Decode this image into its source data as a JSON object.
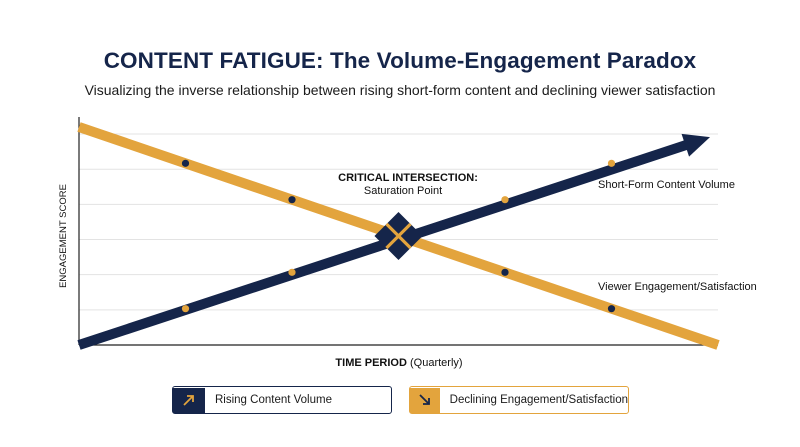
{
  "title": "CONTENT FATIGUE: The Volume-Engagement Paradox",
  "subtitle": "Visualizing the inverse relationship between rising short-form content and declining viewer satisfaction",
  "colors": {
    "navy": "#15254a",
    "gold": "#e3a43d",
    "grid": "#e3e3e3",
    "axis": "#222222"
  },
  "chart_data": {
    "type": "line",
    "xlabel_bold": "TIME PERIOD",
    "xlabel_rest": " (Quarterly)",
    "ylabel": "ENGAGEMENT SCORE",
    "xlim": [
      0,
      6
    ],
    "ylim": [
      0,
      6
    ],
    "grid": true,
    "series": [
      {
        "name": "Short-Form Content Volume",
        "color": "#15254a",
        "line": [
          [
            0,
            0
          ],
          [
            5.8,
            5.6
          ]
        ],
        "points": [
          [
            1,
            1
          ],
          [
            2,
            2
          ],
          [
            3,
            3
          ],
          [
            4,
            4
          ],
          [
            5,
            5
          ]
        ]
      },
      {
        "name": "Viewer Engagement/Satisfaction",
        "color": "#e3a43d",
        "line": [
          [
            0,
            6
          ],
          [
            6,
            0
          ]
        ],
        "points": [
          [
            1,
            5
          ],
          [
            2,
            4
          ],
          [
            3,
            3
          ],
          [
            4,
            2
          ],
          [
            5,
            1
          ]
        ]
      }
    ],
    "annotation": {
      "title": "CRITICAL INTERSECTION:",
      "text": "Saturation Point",
      "x": 3,
      "y": 3
    }
  },
  "legend": [
    {
      "label": "Rising Content Volume",
      "icon": "arrow-up-right-icon"
    },
    {
      "label": "Declining Engagement/Satisfaction",
      "icon": "arrow-down-right-icon"
    }
  ]
}
